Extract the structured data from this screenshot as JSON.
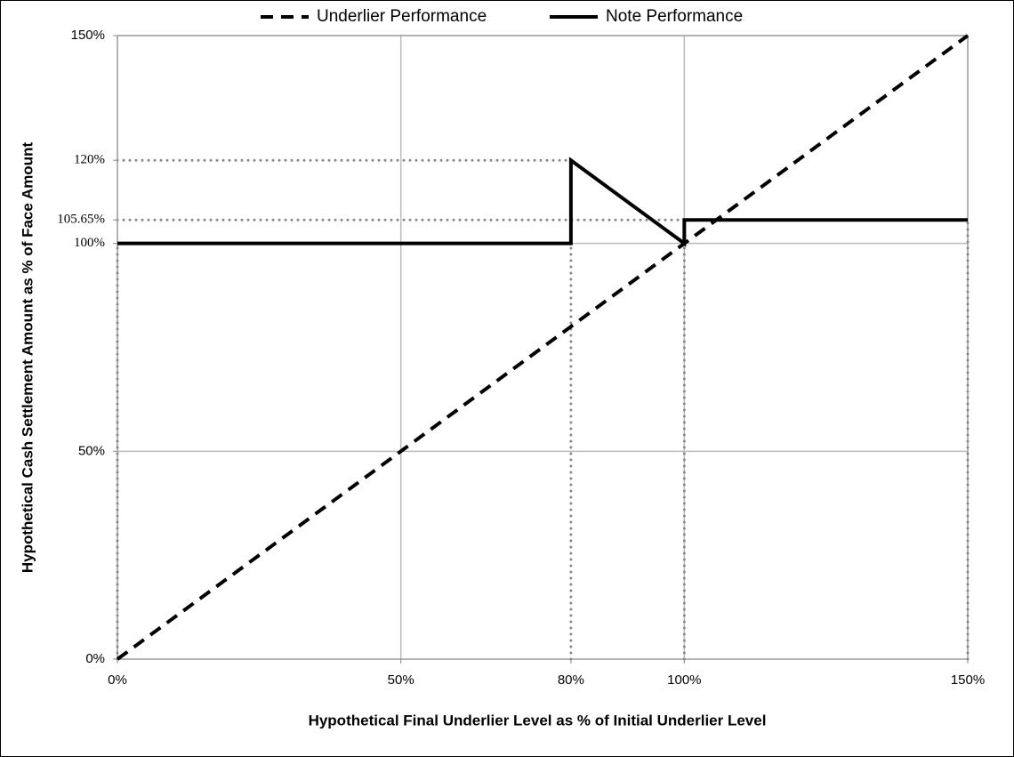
{
  "chart_data": {
    "type": "line",
    "x_label": "Hypothetical Final Underlier Level as % of Initial Underlier Level",
    "y_label": "Hypothetical Cash Settlement Amount as % of Face Amount",
    "xlim": [
      0,
      150
    ],
    "ylim": [
      0,
      150
    ],
    "xticks": [
      {
        "value": 0,
        "label": "0%"
      },
      {
        "value": 50,
        "label": "50%"
      },
      {
        "value": 80,
        "label": "80%"
      },
      {
        "value": 100,
        "label": "100%"
      },
      {
        "value": 150,
        "label": "150%"
      }
    ],
    "yticks": [
      {
        "value": 0,
        "label": "0%"
      },
      {
        "value": 50,
        "label": "50%"
      },
      {
        "value": 100,
        "label": "100%"
      },
      {
        "value": 105.65,
        "label": "105.65%"
      },
      {
        "value": 120,
        "label": "120%"
      },
      {
        "value": 150,
        "label": "150%"
      }
    ],
    "grid": true,
    "legend": "top",
    "series": [
      {
        "name": "Underlier Performance",
        "color": "#000000",
        "line_style": "dashed",
        "x": [
          0,
          150
        ],
        "values": [
          0,
          150
        ]
      },
      {
        "name": "Note Performance",
        "color": "#000000",
        "line_style": "solid",
        "x": [
          0,
          80,
          80,
          100,
          100,
          150
        ],
        "values": [
          100,
          100,
          120,
          100,
          105.65,
          105.65
        ]
      }
    ]
  }
}
